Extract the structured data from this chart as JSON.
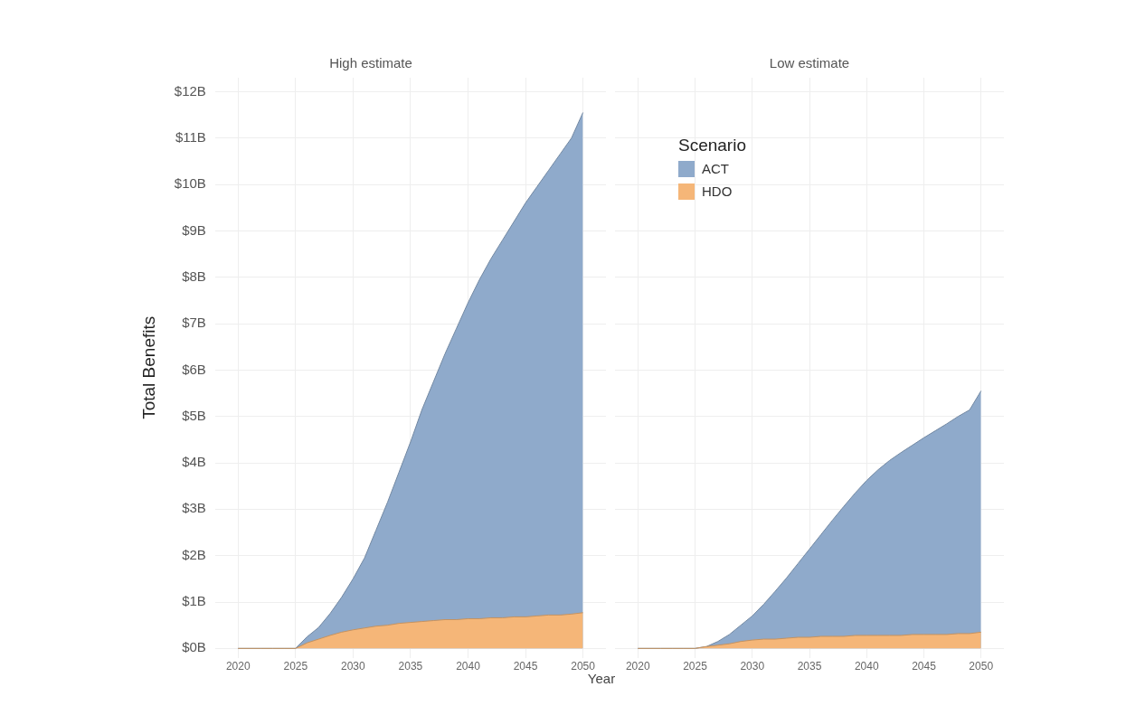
{
  "chart_data": [
    {
      "type": "area",
      "title": "High estimate",
      "xlabel": "Year",
      "ylabel": "Total Benefits",
      "x": [
        2020,
        2021,
        2022,
        2023,
        2024,
        2025,
        2026,
        2027,
        2028,
        2029,
        2030,
        2031,
        2032,
        2033,
        2034,
        2035,
        2036,
        2037,
        2038,
        2039,
        2040,
        2041,
        2042,
        2043,
        2044,
        2045,
        2046,
        2047,
        2048,
        2049,
        2050
      ],
      "series": [
        {
          "color": "#8faacb",
          "values": [
            0,
            0,
            0,
            0,
            0,
            0,
            0.25,
            0.45,
            0.75,
            1.1,
            1.5,
            1.95,
            2.55,
            3.15,
            3.8,
            4.45,
            5.15,
            5.75,
            6.35,
            6.9,
            7.45,
            7.95,
            8.4,
            8.8,
            9.2,
            9.6,
            9.95,
            10.3,
            10.65,
            11.0,
            11.55
          ]
        },
        {
          "color": "#f5b678",
          "values": [
            0,
            0,
            0,
            0,
            0,
            0,
            0.12,
            0.2,
            0.28,
            0.35,
            0.4,
            0.44,
            0.48,
            0.5,
            0.54,
            0.56,
            0.58,
            0.6,
            0.62,
            0.62,
            0.64,
            0.64,
            0.66,
            0.66,
            0.68,
            0.68,
            0.7,
            0.72,
            0.72,
            0.74,
            0.77
          ]
        }
      ],
      "xlim": [
        2018,
        2052
      ],
      "xticks": [
        2020,
        2025,
        2030,
        2035,
        2040,
        2045,
        2050
      ],
      "ylim": [
        -0.2,
        12.3
      ],
      "yticks": [
        {
          "value": 0,
          "label": "$0B"
        },
        {
          "value": 1,
          "label": "$1B"
        },
        {
          "value": 2,
          "label": "$2B"
        },
        {
          "value": 3,
          "label": "$3B"
        },
        {
          "value": 4,
          "label": "$4B"
        },
        {
          "value": 5,
          "label": "$5B"
        },
        {
          "value": 6,
          "label": "$6B"
        },
        {
          "value": 7,
          "label": "$7B"
        },
        {
          "value": 8,
          "label": "$8B"
        },
        {
          "value": 9,
          "label": "$9B"
        },
        {
          "value": 10,
          "label": "$10B"
        },
        {
          "value": 11,
          "label": "$11B"
        },
        {
          "value": 12,
          "label": "$12B"
        }
      ],
      "grid": true
    },
    {
      "type": "area",
      "yticks": [
        {
          "value": 0,
          "label": null
        },
        {
          "value": 1,
          "label": null
        },
        {
          "value": 2,
          "label": null
        },
        {
          "value": 3,
          "label": null
        },
        {
          "value": 4,
          "label": null
        },
        {
          "value": 5,
          "label": null
        },
        {
          "value": 6,
          "label": null
        },
        {
          "value": 7,
          "label": null
        },
        {
          "value": 8,
          "label": null
        },
        {
          "value": 9,
          "label": null
        },
        {
          "value": 10,
          "label": null
        },
        {
          "value": 11,
          "label": null
        },
        {
          "value": 12,
          "label": null
        }
      ],
      "title": "Low estimate",
      "legend_title": "Scenario",
      "legend": "top left",
      "tick_labels": "x",
      "x": [
        2020,
        2021,
        2022,
        2023,
        2024,
        2025,
        2026,
        2027,
        2028,
        2029,
        2030,
        2031,
        2032,
        2033,
        2034,
        2035,
        2036,
        2037,
        2038,
        2039,
        2040,
        2041,
        2042,
        2043,
        2044,
        2045,
        2046,
        2047,
        2048,
        2049,
        2050
      ],
      "series": [
        {
          "name": "ACT",
          "color": "#8faacb",
          "values": [
            0,
            0,
            0,
            0,
            0,
            0,
            0.04,
            0.15,
            0.3,
            0.5,
            0.7,
            0.95,
            1.23,
            1.52,
            1.83,
            2.14,
            2.45,
            2.76,
            3.06,
            3.35,
            3.62,
            3.85,
            4.05,
            4.22,
            4.38,
            4.54,
            4.69,
            4.84,
            5.0,
            5.14,
            5.55
          ]
        },
        {
          "name": "HDO",
          "color": "#f5b678",
          "values": [
            0,
            0,
            0,
            0,
            0,
            0,
            0.04,
            0.07,
            0.1,
            0.15,
            0.18,
            0.2,
            0.2,
            0.22,
            0.24,
            0.24,
            0.26,
            0.26,
            0.26,
            0.28,
            0.28,
            0.28,
            0.28,
            0.28,
            0.3,
            0.3,
            0.3,
            0.3,
            0.32,
            0.32,
            0.35
          ]
        }
      ],
      "xlim": [
        2018,
        2052
      ],
      "xticks": [
        2020,
        2025,
        2030,
        2035,
        2040,
        2045,
        2050
      ],
      "ylim": [
        -0.2,
        12.3
      ],
      "grid": true
    }
  ]
}
